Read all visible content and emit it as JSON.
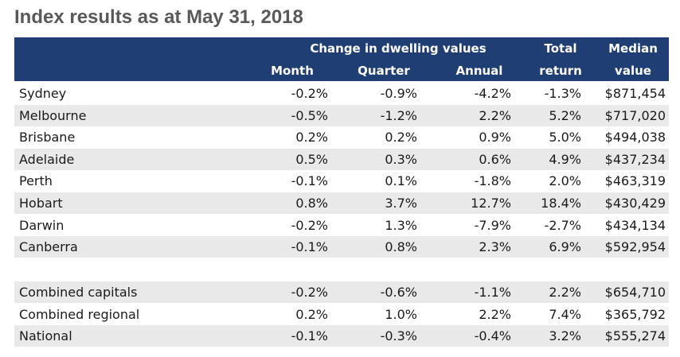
{
  "chart_data": {
    "type": "table",
    "title": "Index results as at May 31, 2018",
    "group_header": "Change in dwelling values",
    "columns": [
      "Month",
      "Quarter",
      "Annual"
    ],
    "total_return_header": [
      "Total",
      "return"
    ],
    "median_value_header": [
      "Median",
      "value"
    ],
    "rows": [
      {
        "name": "Sydney",
        "month": "-0.2%",
        "quarter": "-0.9%",
        "annual": "-4.2%",
        "total": "-1.3%",
        "median": "$871,454"
      },
      {
        "name": "Melbourne",
        "month": "-0.5%",
        "quarter": "-1.2%",
        "annual": "2.2%",
        "total": "5.2%",
        "median": "$717,020"
      },
      {
        "name": "Brisbane",
        "month": "0.2%",
        "quarter": "0.2%",
        "annual": "0.9%",
        "total": "5.0%",
        "median": "$494,038"
      },
      {
        "name": "Adelaide",
        "month": "0.5%",
        "quarter": "0.3%",
        "annual": "0.6%",
        "total": "4.9%",
        "median": "$437,234"
      },
      {
        "name": "Perth",
        "month": "-0.1%",
        "quarter": "0.1%",
        "annual": "-1.8%",
        "total": "2.0%",
        "median": "$463,319"
      },
      {
        "name": "Hobart",
        "month": "0.8%",
        "quarter": "3.7%",
        "annual": "12.7%",
        "total": "18.4%",
        "median": "$430,429"
      },
      {
        "name": "Darwin",
        "month": "-0.2%",
        "quarter": "1.3%",
        "annual": "-7.9%",
        "total": "-2.7%",
        "median": "$434,134"
      },
      {
        "name": "Canberra",
        "month": "-0.1%",
        "quarter": "0.8%",
        "annual": "2.3%",
        "total": "6.9%",
        "median": "$592,954"
      }
    ],
    "summary_rows": [
      {
        "name": "Combined capitals",
        "month": "-0.2%",
        "quarter": "-0.6%",
        "annual": "-1.1%",
        "total": "2.2%",
        "median": "$654,710"
      },
      {
        "name": "Combined regional",
        "month": "0.2%",
        "quarter": "1.0%",
        "annual": "2.2%",
        "total": "7.4%",
        "median": "$365,792"
      },
      {
        "name": "National",
        "month": "-0.1%",
        "quarter": "-0.3%",
        "annual": "-0.4%",
        "total": "3.2%",
        "median": "$555,274"
      }
    ]
  },
  "colors": {
    "header_bg": "#1f3e73",
    "header_text": "#ffffff",
    "title_text": "#595959",
    "row_shade": "#e9e9e9"
  }
}
